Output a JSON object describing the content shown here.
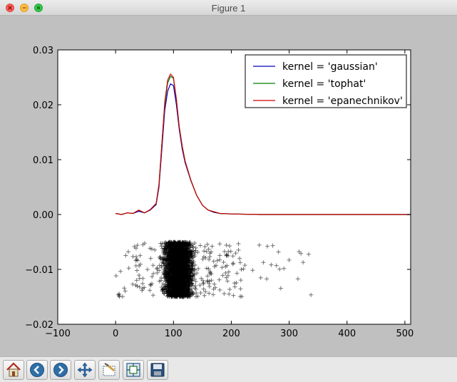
{
  "window": {
    "title": "Figure 1"
  },
  "toolbar": {
    "buttons": [
      {
        "name": "home-button",
        "icon": "home-icon"
      },
      {
        "name": "back-button",
        "icon": "back-arrow-icon"
      },
      {
        "name": "forward-button",
        "icon": "forward-arrow-icon"
      },
      {
        "name": "pan-button",
        "icon": "move-arrows-icon"
      },
      {
        "name": "zoom-button",
        "icon": "zoom-rect-icon"
      },
      {
        "name": "subplots-button",
        "icon": "subplots-icon"
      },
      {
        "name": "save-button",
        "icon": "floppy-disk-icon"
      }
    ]
  },
  "colors": {
    "gaussian": "#0000bf",
    "tophat": "#007f00",
    "epanechnikov": "#d00000",
    "samples": "#000000"
  },
  "chart_data": {
    "type": "line",
    "title": "",
    "xlabel": "",
    "ylabel": "",
    "xlim": [
      -100,
      510
    ],
    "ylim": [
      -0.02,
      0.03
    ],
    "xticks": [
      -100,
      0,
      100,
      200,
      300,
      400,
      500
    ],
    "xtick_labels": [
      "−100",
      "0",
      "100",
      "200",
      "300",
      "400",
      "500"
    ],
    "yticks": [
      -0.02,
      -0.01,
      0.0,
      0.01,
      0.02,
      0.03
    ],
    "ytick_labels": [
      "−0.02",
      "−0.01",
      "0.00",
      "0.01",
      "0.02",
      "0.03"
    ],
    "grid": false,
    "legend_position": "top-right",
    "x": [
      0,
      10,
      20,
      30,
      40,
      50,
      60,
      70,
      75,
      80,
      85,
      90,
      95,
      100,
      105,
      110,
      115,
      120,
      130,
      140,
      150,
      160,
      170,
      180,
      200,
      250,
      300,
      400,
      510
    ],
    "series": [
      {
        "name": "kernel = 'gaussian'",
        "values": [
          0.0002,
          0.0,
          0.0003,
          0.0002,
          0.0006,
          0.0003,
          0.0008,
          0.0018,
          0.005,
          0.012,
          0.019,
          0.0225,
          0.0238,
          0.0235,
          0.02,
          0.0155,
          0.012,
          0.0095,
          0.0062,
          0.0035,
          0.0017,
          0.0008,
          0.0004,
          0.0002,
          0.0001,
          0.0,
          0.0,
          0.0,
          0.0
        ]
      },
      {
        "name": "kernel = 'tophat'",
        "values": [
          0.0002,
          0.0,
          0.0003,
          0.0002,
          0.0008,
          0.0003,
          0.0009,
          0.002,
          0.0055,
          0.013,
          0.02,
          0.024,
          0.0252,
          0.0248,
          0.021,
          0.016,
          0.0125,
          0.0098,
          0.0063,
          0.0035,
          0.0017,
          0.0008,
          0.0005,
          0.0002,
          0.0001,
          0.0,
          0.0,
          0.0,
          0.0
        ]
      },
      {
        "name": "kernel = 'epanechnikov'",
        "values": [
          0.0002,
          0.0,
          0.0003,
          0.0002,
          0.0008,
          0.0003,
          0.0009,
          0.002,
          0.0055,
          0.013,
          0.0205,
          0.0245,
          0.0256,
          0.025,
          0.021,
          0.016,
          0.0125,
          0.0098,
          0.0063,
          0.0035,
          0.0017,
          0.0008,
          0.0005,
          0.0002,
          0.0001,
          0.0,
          0.0,
          0.0,
          0.0
        ]
      }
    ],
    "samples_marker": "+",
    "samples_y_range": [
      -0.015,
      -0.005
    ],
    "samples_x_cluster": [
      72,
      145
    ],
    "samples_x_sparse": [
      [
        0,
        20
      ],
      [
        20,
        72
      ],
      [
        145,
        220
      ],
      [
        220,
        340
      ]
    ]
  }
}
